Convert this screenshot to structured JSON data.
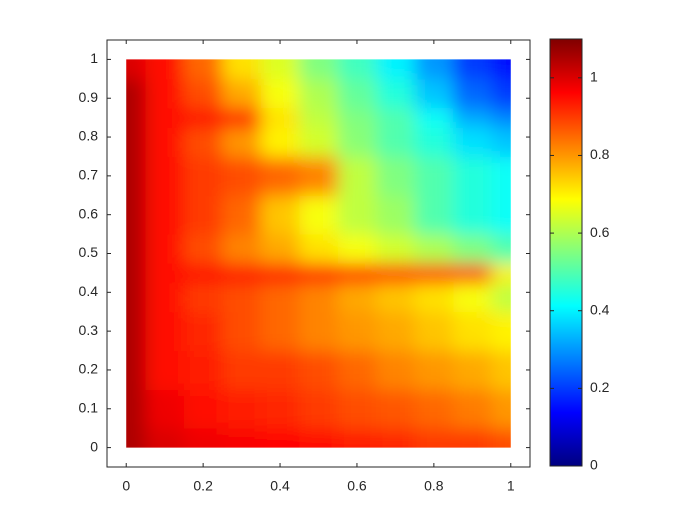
{
  "chart_data": {
    "type": "contour",
    "x": [
      0,
      0.1,
      0.2,
      0.3,
      0.4,
      0.5,
      0.6,
      0.7,
      0.8,
      0.9,
      1
    ],
    "y": [
      0,
      0.1,
      0.2,
      0.3,
      0.4,
      0.45,
      0.5,
      0.6,
      0.7,
      0.8,
      0.85,
      0.9,
      1
    ],
    "z": [
      [
        1.05,
        1.0,
        0.98,
        0.97,
        0.96,
        0.95,
        0.93,
        0.92,
        0.9,
        0.9,
        0.88
      ],
      [
        1.05,
        0.98,
        0.95,
        0.93,
        0.92,
        0.9,
        0.88,
        0.87,
        0.85,
        0.83,
        0.8
      ],
      [
        1.05,
        0.95,
        0.93,
        0.9,
        0.9,
        0.88,
        0.85,
        0.82,
        0.8,
        0.78,
        0.75
      ],
      [
        1.05,
        0.95,
        0.92,
        0.88,
        0.85,
        0.82,
        0.8,
        0.78,
        0.75,
        0.72,
        0.7
      ],
      [
        1.05,
        0.95,
        0.9,
        0.88,
        0.85,
        0.82,
        0.78,
        0.75,
        0.72,
        0.68,
        0.62
      ],
      [
        1.05,
        0.95,
        0.95,
        0.95,
        0.95,
        0.95,
        0.93,
        0.92,
        0.92,
        0.92,
        0.7
      ],
      [
        1.05,
        0.95,
        0.88,
        0.82,
        0.78,
        0.72,
        0.68,
        0.64,
        0.6,
        0.55,
        0.5
      ],
      [
        1.05,
        0.95,
        0.9,
        0.85,
        0.75,
        0.68,
        0.62,
        0.58,
        0.5,
        0.45,
        0.42
      ],
      [
        1.05,
        0.95,
        0.9,
        0.88,
        0.85,
        0.82,
        0.62,
        0.55,
        0.5,
        0.45,
        0.42
      ],
      [
        1.05,
        0.95,
        0.88,
        0.8,
        0.7,
        0.64,
        0.56,
        0.5,
        0.45,
        0.38,
        0.35
      ],
      [
        1.05,
        0.95,
        0.95,
        0.95,
        0.72,
        0.62,
        0.55,
        0.5,
        0.42,
        0.32,
        0.28
      ],
      [
        1.05,
        0.95,
        0.88,
        0.78,
        0.68,
        0.6,
        0.52,
        0.45,
        0.35,
        0.25,
        0.2
      ],
      [
        1.0,
        0.95,
        0.85,
        0.72,
        0.65,
        0.55,
        0.48,
        0.4,
        0.3,
        0.2,
        0.15
      ]
    ],
    "xlim": [
      -0.05,
      1.05
    ],
    "ylim": [
      -0.05,
      1.05
    ],
    "xticks": [
      0,
      0.2,
      0.4,
      0.6,
      0.8,
      1
    ],
    "yticks": [
      0,
      0.1,
      0.2,
      0.3,
      0.4,
      0.5,
      0.6,
      0.7,
      0.8,
      0.9,
      1
    ],
    "colormap": "jet",
    "clim": [
      0,
      1.1
    ],
    "colorbar_ticks": [
      0,
      0.2,
      0.4,
      0.6,
      0.8,
      1
    ]
  }
}
